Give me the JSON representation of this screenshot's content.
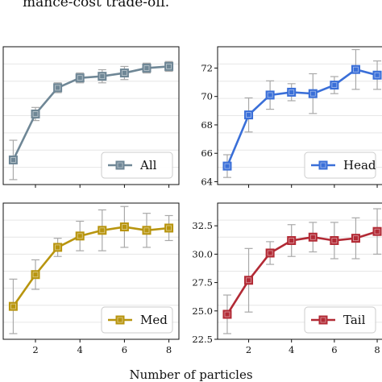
{
  "caption_fragment": "mance-cost trade-off.",
  "shared_xlabel": "Number of particles",
  "chart_data": [
    {
      "type": "line",
      "panel": "top-left",
      "x": [
        1,
        2,
        3,
        4,
        5,
        6,
        7,
        8
      ],
      "xticks": [
        2,
        4,
        6,
        8
      ],
      "series": [
        {
          "name": "All",
          "color": "#6f8796",
          "values": [
            64.4,
            67.2,
            68.8,
            69.4,
            69.5,
            69.7,
            70.0,
            70.1
          ],
          "err": [
            1.2,
            0.4,
            0.3,
            0.3,
            0.4,
            0.4,
            0.3,
            0.3
          ]
        }
      ],
      "ylim": [
        62.9,
        71.3
      ],
      "yticks": [],
      "legend": "lower-right",
      "grid": "y"
    },
    {
      "type": "line",
      "panel": "top-right",
      "x": [
        1,
        2,
        3,
        4,
        5,
        6,
        7,
        8
      ],
      "xticks": [
        2,
        4,
        6,
        8
      ],
      "series": [
        {
          "name": "Head",
          "color": "#3a6fd8",
          "values": [
            65.1,
            68.7,
            70.1,
            70.3,
            70.2,
            70.8,
            71.9,
            71.5
          ],
          "err": [
            0.8,
            1.2,
            1.0,
            0.6,
            1.4,
            0.6,
            1.4,
            1.0
          ]
        }
      ],
      "ylim": [
        63.8,
        73.5
      ],
      "yticks": [
        64,
        66,
        68,
        70,
        72
      ],
      "legend": "lower-right",
      "grid": "y"
    },
    {
      "type": "line",
      "panel": "bottom-left",
      "x": [
        1,
        2,
        3,
        4,
        5,
        6,
        7,
        8
      ],
      "xticks": [
        2,
        4,
        6,
        8
      ],
      "series": [
        {
          "name": "Med",
          "color": "#b8950f",
          "values": [
            25.7,
            28.5,
            30.9,
            31.9,
            32.4,
            32.7,
            32.4,
            32.6
          ],
          "err": [
            2.4,
            1.3,
            0.8,
            1.3,
            1.8,
            1.8,
            1.5,
            1.1
          ]
        }
      ],
      "ylim": [
        22.8,
        34.8
      ],
      "yticks": [],
      "legend": "lower-right",
      "grid": "y"
    },
    {
      "type": "line",
      "panel": "bottom-right",
      "x": [
        1,
        2,
        3,
        4,
        5,
        6,
        7,
        8
      ],
      "xticks": [
        2,
        4,
        6,
        8
      ],
      "series": [
        {
          "name": "Tail",
          "color": "#b22a35",
          "values": [
            24.7,
            27.7,
            30.1,
            31.2,
            31.5,
            31.2,
            31.4,
            32.0
          ],
          "err": [
            1.7,
            2.8,
            1.0,
            1.4,
            1.3,
            1.6,
            1.8,
            2.0
          ]
        }
      ],
      "ylim": [
        22.5,
        34.5
      ],
      "yticks": [
        22.5,
        25.0,
        27.5,
        30.0,
        32.5
      ],
      "legend": "lower-right",
      "grid": "y"
    }
  ]
}
